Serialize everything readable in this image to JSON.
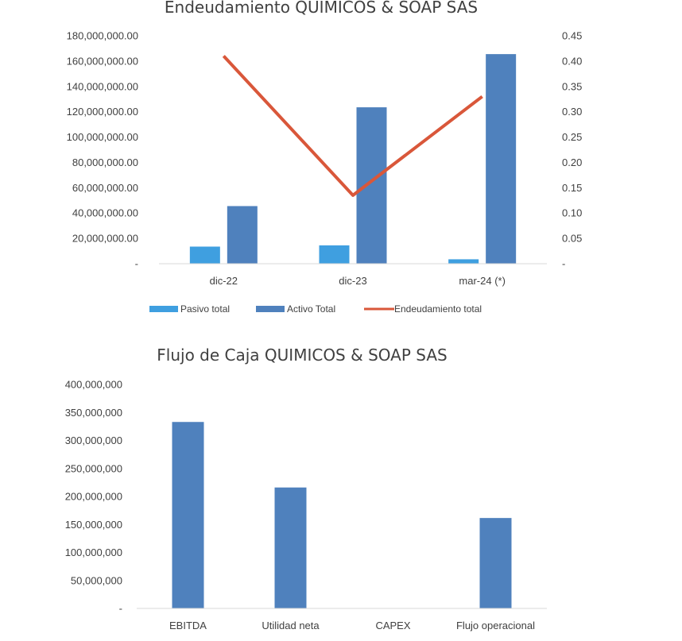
{
  "chart_data": [
    {
      "type": "bar",
      "title": "Endeudamiento QUIMICOS & SOAP SAS",
      "categories": [
        "dic-22",
        "dic-23",
        "mar-24 (*)"
      ],
      "y_ticks": [
        "-",
        "20,000,000.00",
        "40,000,000.00",
        "60,000,000.00",
        "80,000,000.00",
        "100,000,000.00",
        "120,000,000.00",
        "140,000,000.00",
        "160,000,000.00",
        "180,000,000.00"
      ],
      "y2_ticks": [
        "-",
        "0.05",
        "0.10",
        "0.15",
        "0.20",
        "0.25",
        "0.30",
        "0.35",
        "0.40",
        "0.45"
      ],
      "ylim": [
        0,
        180000000
      ],
      "y2lim": [
        0,
        0.45
      ],
      "series": [
        {
          "name": "Pasivo total",
          "type": "bar",
          "color": "#3f9fe0",
          "values": [
            13500000,
            14500000,
            3500000
          ]
        },
        {
          "name": "Activo Total",
          "type": "bar",
          "color": "#4f81bd",
          "values": [
            45500000,
            123500000,
            165500000
          ]
        },
        {
          "name": "Endeudamiento total",
          "type": "line",
          "axis": "secondary",
          "color": "#d9573a",
          "values": [
            0.41,
            0.135,
            0.33
          ]
        }
      ],
      "legend": "bottom",
      "grid": false
    },
    {
      "type": "bar",
      "title": "Flujo de Caja QUIMICOS & SOAP SAS",
      "categories": [
        "EBITDA",
        "Utilidad neta",
        "CAPEX",
        "Flujo operacional"
      ],
      "y_ticks": [
        "-",
        "50,000,000",
        "100,000,000",
        "150,000,000",
        "200,000,000",
        "250,000,000",
        "300,000,000",
        "350,000,000",
        "400,000,000"
      ],
      "ylim": [
        0,
        400000000
      ],
      "series": [
        {
          "color": "#4f81bd",
          "values": [
            333000000,
            216000000,
            0,
            161500000
          ]
        }
      ],
      "grid": false
    }
  ]
}
